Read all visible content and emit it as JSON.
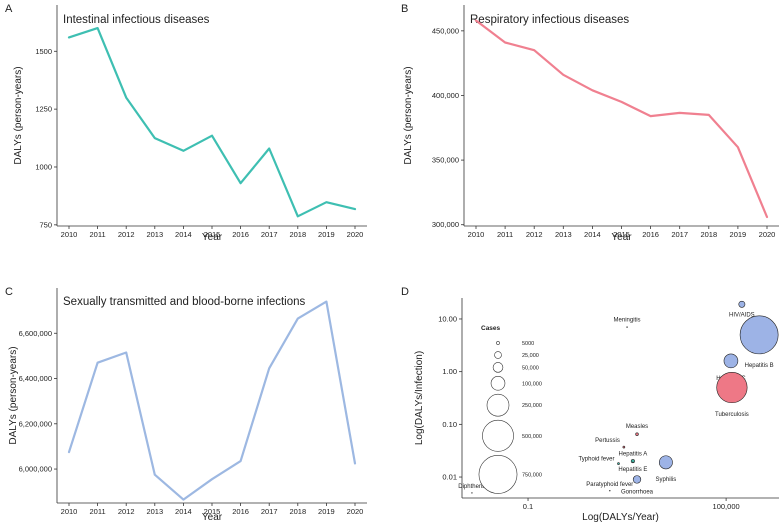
{
  "colors": {
    "intestinal": "#3ebfb2",
    "respiratory": "#f08090",
    "sexual": "#9db8e2",
    "bubble_blue": "#9db3e6",
    "bubble_red": "#ee7886",
    "bubble_teal": "#3fb7a6",
    "axis": "#333333"
  },
  "chart_data": [
    {
      "panel": "A",
      "type": "line",
      "title": "Intestinal infectious diseases",
      "xlabel": "Year",
      "ylabel": "DALYs (person-years)",
      "x": [
        2010,
        2011,
        2012,
        2013,
        2014,
        2015,
        2016,
        2017,
        2018,
        2019,
        2020
      ],
      "values": [
        1560,
        1600,
        1300,
        1125,
        1070,
        1135,
        930,
        1080,
        787,
        848,
        818
      ],
      "ylim": [
        745,
        1700
      ],
      "yticks": [
        750,
        1000,
        1250,
        1500
      ],
      "ytick_labels": [
        "750",
        "1000",
        "1250",
        "1500"
      ],
      "xtick_labels": [
        "2010",
        "2011",
        "2012",
        "2013",
        "2014",
        "2015",
        "2016",
        "2017",
        "2018",
        "2019",
        "2020"
      ]
    },
    {
      "panel": "B",
      "type": "line",
      "title": "Respiratory infectious diseases",
      "xlabel": "Year",
      "ylabel": "DALYs (person-years)",
      "x": [
        2010,
        2011,
        2012,
        2013,
        2014,
        2015,
        2016,
        2017,
        2018,
        2019,
        2020
      ],
      "values": [
        458000,
        441000,
        435000,
        416000,
        404000,
        395000,
        384000,
        386500,
        385000,
        360000,
        306000
      ],
      "ylim": [
        299000,
        470000
      ],
      "yticks": [
        300000,
        350000,
        400000,
        450000
      ],
      "ytick_labels": [
        "300,000",
        "350,000",
        "400,000",
        "450,000"
      ],
      "xtick_labels": [
        "2010",
        "2011",
        "2012",
        "2013",
        "2014",
        "2015",
        "2016",
        "2017",
        "2018",
        "2019",
        "2020"
      ]
    },
    {
      "panel": "C",
      "type": "line",
      "title": "Sexually transmitted and blood-borne infections",
      "xlabel": "Year",
      "ylabel": "DALYs (person-years)",
      "x": [
        2010,
        2011,
        2012,
        2013,
        2014,
        2015,
        2016,
        2017,
        2018,
        2019,
        2020
      ],
      "values": [
        6075000,
        6470000,
        6515000,
        5975000,
        5865000,
        5955000,
        6035000,
        6445000,
        6665000,
        6740000,
        6025000
      ],
      "ylim": [
        5850000,
        6800000
      ],
      "yticks": [
        6000000,
        6200000,
        6400000,
        6600000
      ],
      "ytick_labels": [
        "6,000,000",
        "6,200,000",
        "6,400,000",
        "6,600,000"
      ],
      "xtick_labels": [
        "2010",
        "2011",
        "2012",
        "2013",
        "2014",
        "2015",
        "2016",
        "2017",
        "2018",
        "2019",
        "2020"
      ]
    },
    {
      "panel": "D",
      "type": "scatter",
      "xlabel": "Log(DALYs/Year)",
      "ylabel": "Log(DALYs/Infection)",
      "xscale": "log",
      "yscale": "log",
      "xlim": [
        0.001,
        4000000
      ],
      "ylim": [
        0.004,
        25
      ],
      "xticks": [
        0.1,
        100000
      ],
      "xtick_labels": [
        "0.1",
        "100,000"
      ],
      "yticks": [
        0.01,
        0.1,
        1,
        10
      ],
      "ytick_labels": [
        "0.01",
        "0.10",
        "1.00",
        "10.00"
      ],
      "points": [
        {
          "label": "HIV/AIDS",
          "x": 300000,
          "y": 19,
          "cases": 20000,
          "color": "blue"
        },
        {
          "label": "Hepatitis B",
          "x": 1000000,
          "y": 5,
          "cases": 750000,
          "color": "blue"
        },
        {
          "label": "Meningitis",
          "x": 100,
          "y": 7,
          "cases": 200,
          "color": "none"
        },
        {
          "label": "Hepatitis C",
          "x": 140000,
          "y": 1.6,
          "cases": 100000,
          "color": "blue"
        },
        {
          "label": "Tuberculosis",
          "x": 150000,
          "y": 0.5,
          "cases": 480000,
          "color": "red"
        },
        {
          "label": "Measles",
          "x": 200,
          "y": 0.065,
          "cases": 4000,
          "color": "red"
        },
        {
          "label": "Pertussis",
          "x": 80,
          "y": 0.037,
          "cases": 1000,
          "color": "red"
        },
        {
          "label": "Hepatitis A",
          "x": 150,
          "y": 0.02,
          "cases": 6000,
          "color": "teal"
        },
        {
          "label": "Typhoid fever",
          "x": 55,
          "y": 0.018,
          "cases": 800,
          "color": "teal"
        },
        {
          "label": "Hepatitis E",
          "x": 150,
          "y": 0.019,
          "cases": 3000,
          "color": "none"
        },
        {
          "label": "Syphilis",
          "x": 1500,
          "y": 0.019,
          "cases": 90000,
          "color": "blue"
        },
        {
          "label": "Gonorrhoea",
          "x": 200,
          "y": 0.009,
          "cases": 30000,
          "color": "blue"
        },
        {
          "label": "Paratyphoid fever",
          "x": 30,
          "y": 0.0055,
          "cases": 200,
          "color": "none"
        },
        {
          "label": "Diphtheria",
          "x": 0.002,
          "y": 0.005,
          "cases": 20,
          "color": "none"
        }
      ],
      "legend": {
        "title": "Cases",
        "placement": "left",
        "entries": [
          {
            "label": "5000",
            "value": 5000
          },
          {
            "label": "25,000",
            "value": 25000
          },
          {
            "label": "50,000",
            "value": 50000
          },
          {
            "label": "100,000",
            "value": 100000
          },
          {
            "label": "250,000",
            "value": 250000
          },
          {
            "label": "500,000",
            "value": 500000
          },
          {
            "label": "750,000",
            "value": 750000
          }
        ]
      }
    }
  ]
}
